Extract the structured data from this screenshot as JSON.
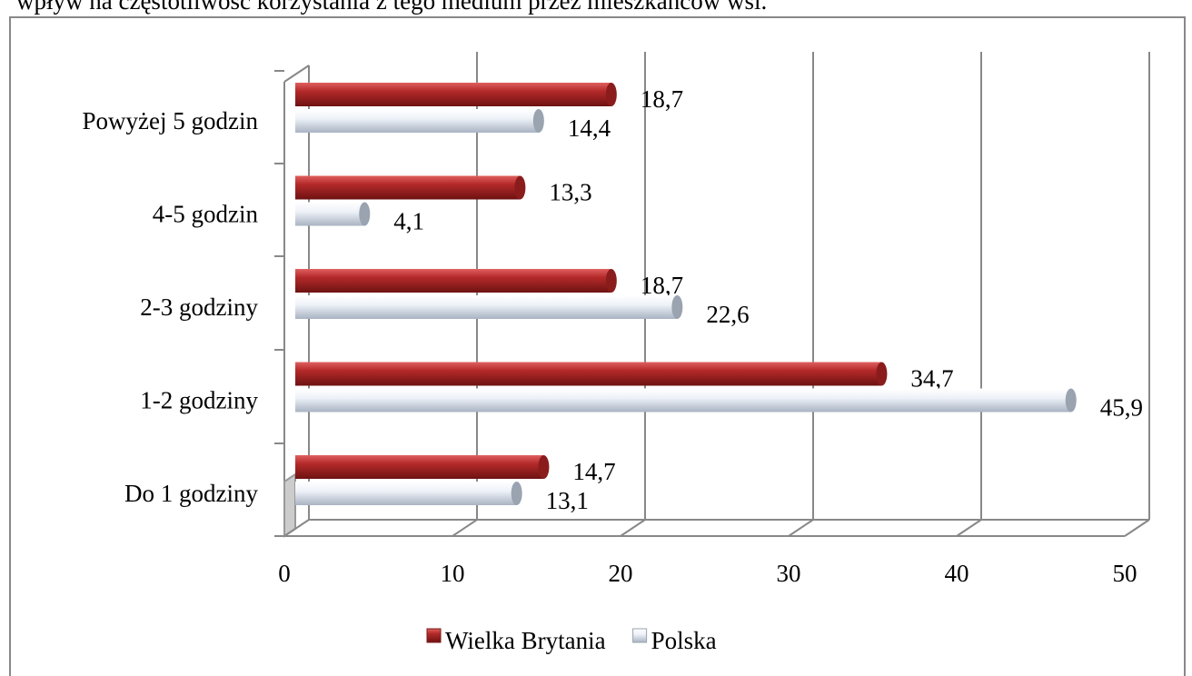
{
  "text_above": "wpływ na częstotliwość korzystania z tego medium przez mieszkańców wsi.",
  "chart_data": {
    "type": "bar",
    "orientation": "horizontal",
    "categories": [
      "Do 1 godziny",
      "1-2 godziny",
      "2-3 godziny",
      "4-5 godzin",
      "Powyżej 5 godzin"
    ],
    "series": [
      {
        "name": "Wielka Brytania",
        "color": "#b52a2a",
        "values": [
          14.7,
          34.7,
          18.7,
          13.3,
          18.7
        ],
        "value_labels": [
          "14,7",
          "34,7",
          "18,7",
          "13,3",
          "18,7"
        ]
      },
      {
        "name": "Polska",
        "color": "#dfe6f0",
        "values": [
          13.1,
          45.9,
          22.6,
          4.1,
          14.4
        ],
        "value_labels": [
          "13,1",
          "45,9",
          "22,6",
          "4,1",
          "14,4"
        ]
      }
    ],
    "xlim": [
      0,
      50
    ],
    "xticks": [
      0,
      10,
      20,
      30,
      40,
      50
    ],
    "grid": true,
    "legend": "bottom"
  }
}
